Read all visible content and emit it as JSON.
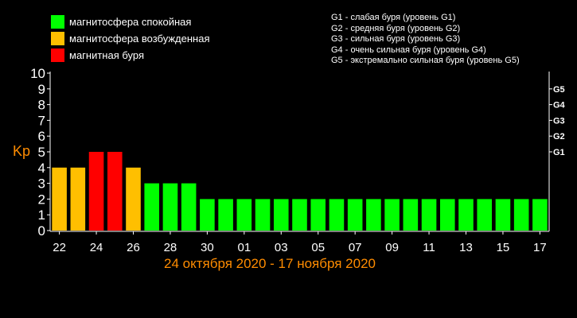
{
  "legend": {
    "items": [
      {
        "label": "магнитосфера спокойная",
        "color": "#00ff00"
      },
      {
        "label": "магнитосфера возбужденная",
        "color": "#ffbf00"
      },
      {
        "label": "магнитная буря",
        "color": "#ff0000"
      }
    ],
    "storm_levels": [
      "G1 - слабая буря (уровень G1)",
      "G2 - средняя буря (уровень G2)",
      "G3 - сильная буря (уровень G3)",
      "G4 - очень сильная буря (уровень G4)",
      "G5 - экстремально сильная буря (уровень G5)"
    ]
  },
  "chart_data": {
    "type": "bar",
    "ylabel": "Kp",
    "xlabel": "24 октября 2020 - 17 ноября 2020",
    "ylim": [
      0,
      10
    ],
    "yticks": [
      0,
      1,
      2,
      3,
      4,
      5,
      6,
      7,
      8,
      9,
      10
    ],
    "right_axis_labels": [
      {
        "label": "G1",
        "value": 5
      },
      {
        "label": "G2",
        "value": 6
      },
      {
        "label": "G3",
        "value": 7
      },
      {
        "label": "G4",
        "value": 8
      },
      {
        "label": "G5",
        "value": 9
      }
    ],
    "grid": false,
    "xtick_labels": [
      "22",
      "24",
      "26",
      "28",
      "30",
      "01",
      "03",
      "05",
      "07",
      "09",
      "11",
      "13",
      "15",
      "17"
    ],
    "values": [
      4,
      4,
      5,
      5,
      4,
      3,
      3,
      3,
      2,
      2,
      2,
      2,
      2,
      2,
      2,
      2,
      2,
      2,
      2,
      2,
      2,
      2,
      2,
      2,
      2,
      2,
      2
    ],
    "bar_states": [
      "excited",
      "excited",
      "storm",
      "storm",
      "excited",
      "quiet",
      "quiet",
      "quiet",
      "quiet",
      "quiet",
      "quiet",
      "quiet",
      "quiet",
      "quiet",
      "quiet",
      "quiet",
      "quiet",
      "quiet",
      "quiet",
      "quiet",
      "quiet",
      "quiet",
      "quiet",
      "quiet",
      "quiet",
      "quiet",
      "quiet"
    ],
    "state_colors": {
      "quiet": "#00ff00",
      "excited": "#ffbf00",
      "storm": "#ff0000"
    }
  }
}
